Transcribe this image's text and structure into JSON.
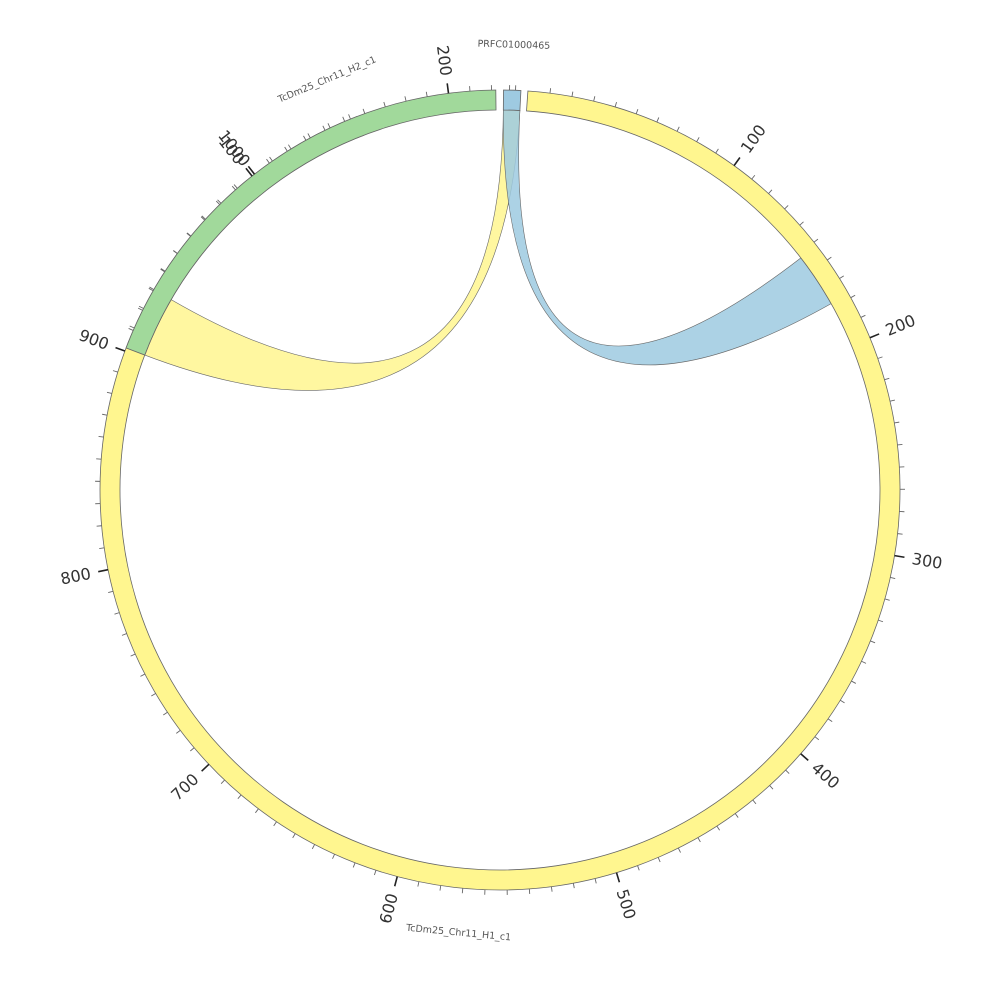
{
  "chart_data": {
    "type": "chord",
    "segments": [
      {
        "name": "TcDm25_Chr11_H1_c1",
        "label": "TcDm25_Chr11_H1_c1",
        "color": "#fff68f",
        "length": 1053,
        "major_tick_labels": [
          "100",
          "200",
          "300",
          "400",
          "500",
          "600",
          "700",
          "800",
          "900",
          "1000"
        ]
      },
      {
        "name": "TcDm25_Chr11_H2_c1",
        "label": "TcDm25_Chr11_H2_c1",
        "color": "#a1d99b",
        "length": 222,
        "major_tick_labels": [
          "100",
          "200"
        ]
      },
      {
        "name": "PRFC01000465",
        "label": "PRFC01000465",
        "color": "#9ecae1",
        "length": 29,
        "major_tick_labels": []
      }
    ],
    "links": [
      {
        "from": {
          "segment": "TcDm25_Chr11_H2_c1",
          "start": 0,
          "end": 30
        },
        "to": {
          "segment": "PRFC01000465",
          "start": 0,
          "end": 29
        },
        "color": "#fff68f"
      },
      {
        "from": {
          "segment": "PRFC01000465",
          "start": 0,
          "end": 29
        },
        "to": {
          "segment": "TcDm25_Chr11_H1_c1",
          "start": 152,
          "end": 178
        },
        "color": "#9ecae1"
      }
    ],
    "tick_step": 10,
    "major_tick_step": 100,
    "legend": "none",
    "grid": false
  }
}
